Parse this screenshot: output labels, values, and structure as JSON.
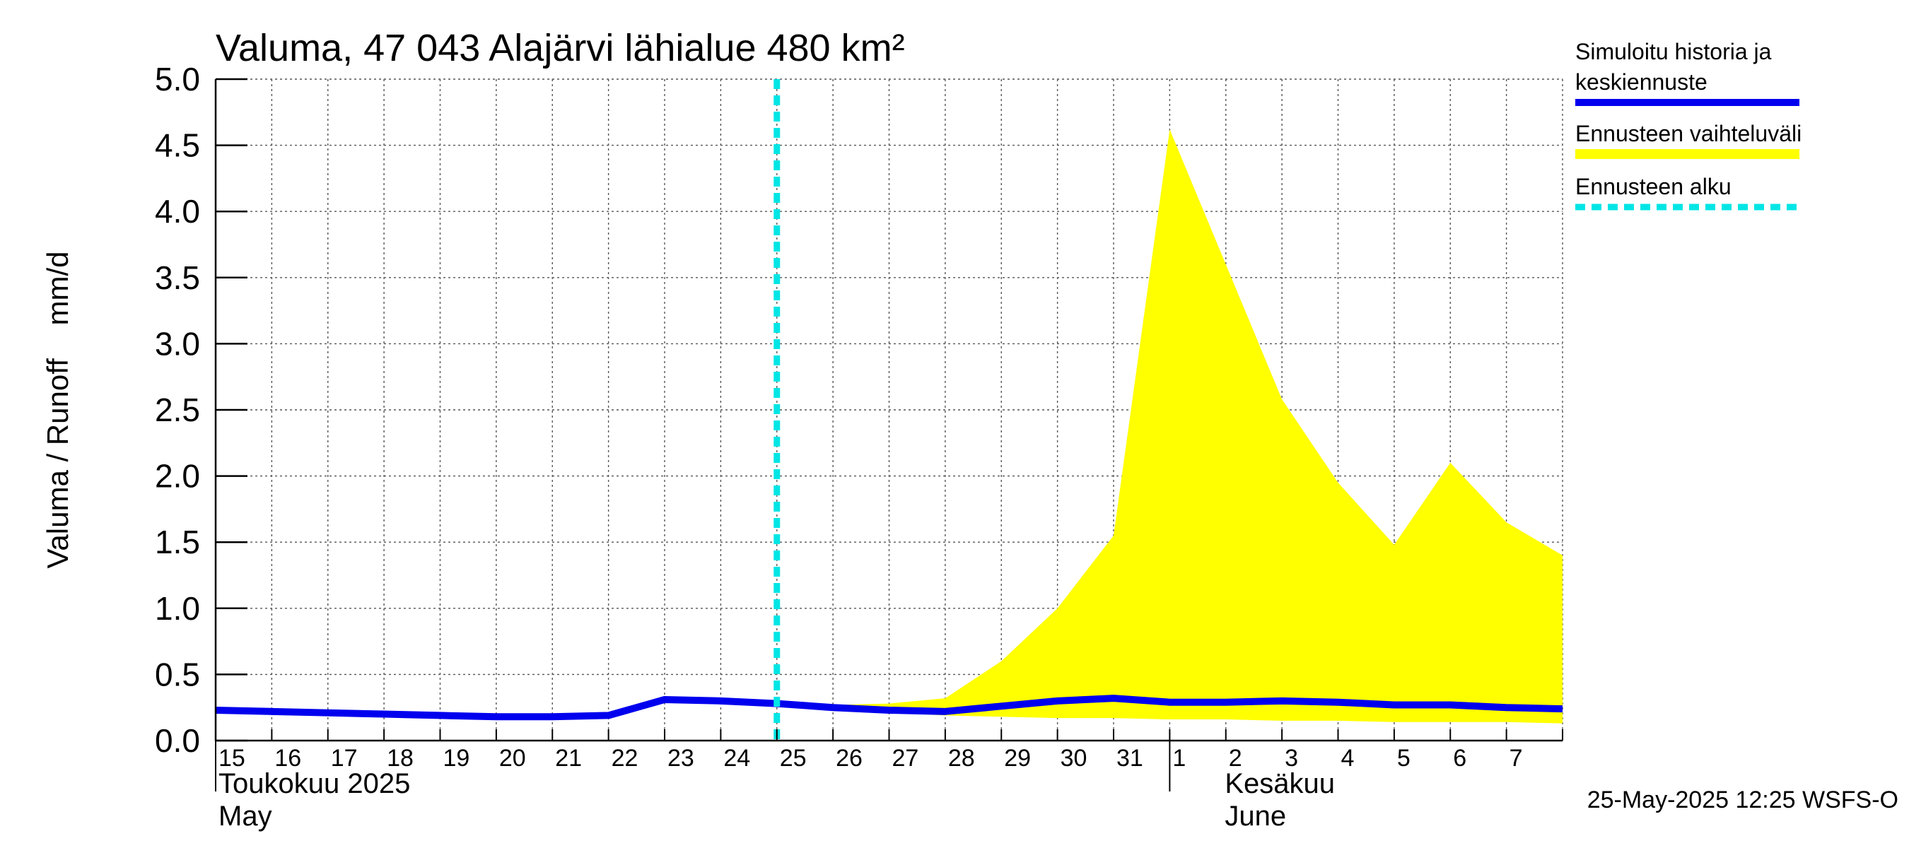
{
  "chart_data": {
    "type": "line",
    "title": "Valuma, 47 043 Alajärvi lähialue 480 km²",
    "ylabel": "Valuma / Runoff    mm/d",
    "ylim": [
      0,
      5.0
    ],
    "yticks": [
      "0.0",
      "0.5",
      "1.0",
      "1.5",
      "2.0",
      "2.5",
      "3.0",
      "3.5",
      "4.0",
      "4.5",
      "5.0"
    ],
    "xlim": [
      "2025-05-15",
      "2025-06-08"
    ],
    "x_tick_labels": [
      "15",
      "16",
      "17",
      "18",
      "19",
      "20",
      "21",
      "22",
      "23",
      "24",
      "25",
      "26",
      "27",
      "28",
      "29",
      "30",
      "31",
      "1",
      "2",
      "3",
      "4",
      "5",
      "6",
      "7"
    ],
    "month_labels": [
      {
        "line1": "Toukokuu  2025",
        "line2": "May"
      },
      {
        "line1": "Kesäkuu",
        "line2": "June"
      }
    ],
    "grid": true,
    "legend_position": "right",
    "forecast_start": "2025-05-25",
    "series": [
      {
        "name": "Simuloitu historia ja keskiennuste",
        "color": "#0000ee",
        "x": [
          "2025-05-15",
          "2025-05-16",
          "2025-05-17",
          "2025-05-18",
          "2025-05-19",
          "2025-05-20",
          "2025-05-21",
          "2025-05-22",
          "2025-05-23",
          "2025-05-24",
          "2025-05-25",
          "2025-05-26",
          "2025-05-27",
          "2025-05-28",
          "2025-05-29",
          "2025-05-30",
          "2025-05-31",
          "2025-06-01",
          "2025-06-02",
          "2025-06-03",
          "2025-06-04",
          "2025-06-05",
          "2025-06-06",
          "2025-06-07",
          "2025-06-08"
        ],
        "y": [
          0.23,
          0.22,
          0.21,
          0.2,
          0.19,
          0.18,
          0.18,
          0.19,
          0.31,
          0.3,
          0.28,
          0.25,
          0.23,
          0.22,
          0.26,
          0.3,
          0.32,
          0.29,
          0.29,
          0.3,
          0.29,
          0.27,
          0.27,
          0.25,
          0.24
        ]
      },
      {
        "name": "Ennusteen vaihteluväli",
        "type": "area",
        "color": "#ffff00",
        "x": [
          "2025-05-25",
          "2025-05-26",
          "2025-05-27",
          "2025-05-28",
          "2025-05-29",
          "2025-05-30",
          "2025-05-31",
          "2025-06-01",
          "2025-06-02",
          "2025-06-03",
          "2025-06-04",
          "2025-06-05",
          "2025-06-06",
          "2025-06-07",
          "2025-06-08"
        ],
        "upper": [
          0.29,
          0.27,
          0.28,
          0.32,
          0.6,
          1.0,
          1.55,
          4.62,
          3.6,
          2.58,
          1.95,
          1.48,
          2.1,
          1.65,
          1.4
        ],
        "lower": [
          0.27,
          0.24,
          0.21,
          0.19,
          0.18,
          0.17,
          0.17,
          0.16,
          0.16,
          0.15,
          0.15,
          0.14,
          0.14,
          0.14,
          0.13
        ]
      },
      {
        "name": "Ennusteen alku",
        "type": "vline",
        "color": "#00e5e5",
        "x": "2025-05-25"
      }
    ]
  },
  "footer": "25-May-2025 12:25 WSFS-O"
}
